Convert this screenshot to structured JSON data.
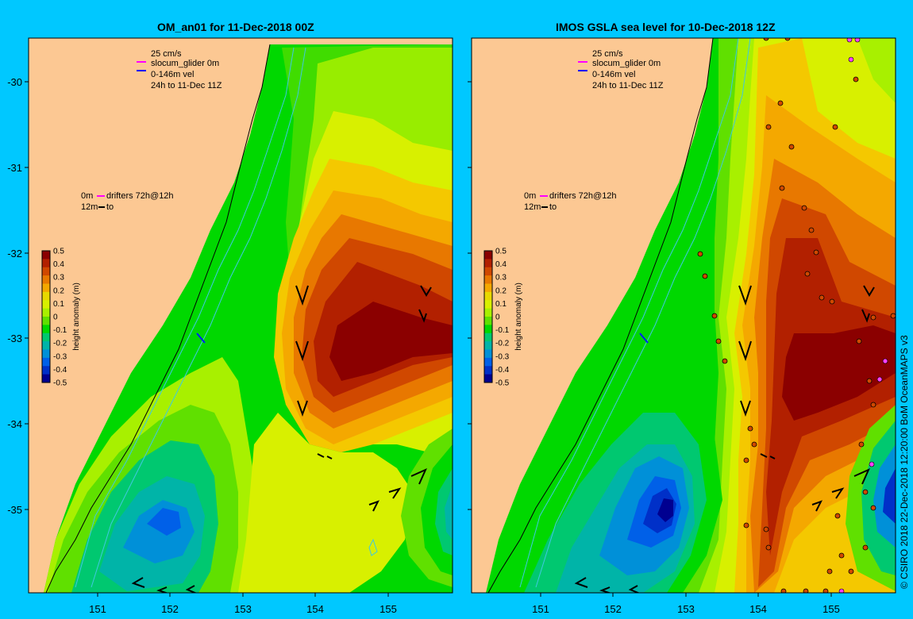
{
  "panels": [
    {
      "id": "left",
      "title": "OM_an01 for 11-Dec-2018 00Z",
      "legend": {
        "speed": "25 cm/s",
        "glider": "slocum_glider 0m",
        "vel": "0-146m vel",
        "window": "24h to 11-Dec 11Z",
        "drifters_0m": "0m",
        "drifters_label": "drifters 72h@12h",
        "drifters_12m": "12m",
        "drifters_to": "to"
      }
    },
    {
      "id": "right",
      "title": "IMOS GSLA sea level  for 10-Dec-2018 12Z",
      "legend": {
        "speed": "25 cm/s",
        "glider": "slocum_glider 0m",
        "vel": "0-146m vel",
        "window": "24h to 11-Dec 11Z",
        "drifters_0m": "0m",
        "drifters_label": "drifters 72h@12h",
        "drifters_12m": "12m",
        "drifters_to": "to"
      }
    }
  ],
  "axes": {
    "x_ticks": [
      "151",
      "152",
      "153",
      "154",
      "155"
    ],
    "y_ticks": [
      "-30",
      "-31",
      "-32",
      "-33",
      "-34",
      "-35"
    ]
  },
  "colorbar": {
    "label": "height anomaly (m)",
    "ticks": [
      "0.5",
      "0.4",
      "0.3",
      "0.2",
      "0.1",
      "0",
      "-0.1",
      "-0.2",
      "-0.3",
      "-0.4",
      "-0.5"
    ],
    "colors": [
      "#8b0000",
      "#b22000",
      "#d04800",
      "#e87800",
      "#f4a800",
      "#e8d800",
      "#d8f000",
      "#a8f000",
      "#60e000",
      "#00d800",
      "#00c870",
      "#00b4a8",
      "#0090d8",
      "#0060e8",
      "#0030c8",
      "#000090"
    ]
  },
  "credit": "© CSIRO 2018  22-Dec-2018 12:20:00 BoM OceanMAPS v3"
}
